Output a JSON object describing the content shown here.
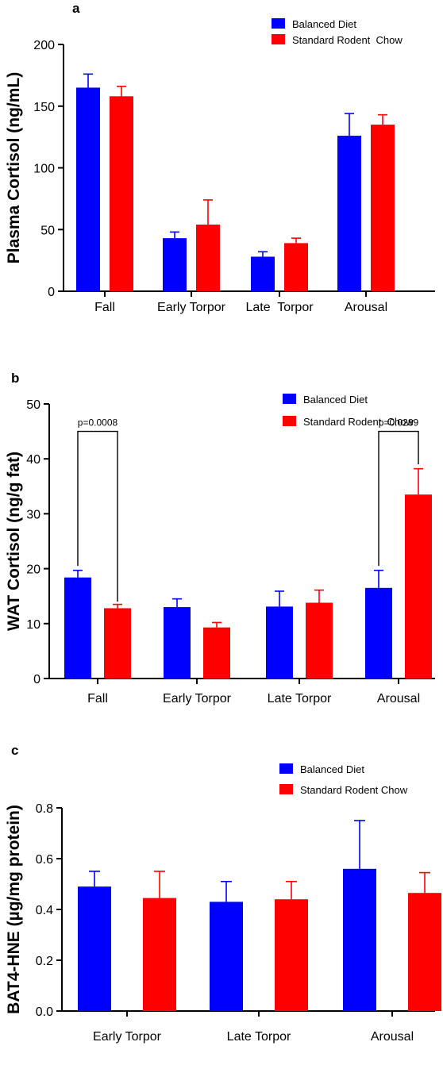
{
  "chart_data": [
    {
      "type": "bar",
      "panel_letter": "a",
      "title": "",
      "xlabel": "",
      "ylabel": "Plasma Cortisol (ng/mL)",
      "ylim": [
        0,
        200
      ],
      "yticks": [
        "0",
        "50",
        "100",
        "150",
        "200"
      ],
      "categories": [
        "Fall",
        "Early Torpor",
        "Late  Torpor",
        "Arousal"
      ],
      "series": [
        {
          "name": "Balanced Diet",
          "color": "#0000ff",
          "values": [
            165,
            43,
            28,
            126
          ],
          "errors": [
            11,
            5,
            4,
            18
          ]
        },
        {
          "name": "Standard Rodent  Chow",
          "color": "#ff0000",
          "values": [
            158,
            54,
            39,
            135
          ],
          "errors": [
            8,
            20,
            4,
            8
          ]
        }
      ],
      "annotations": [],
      "legend": "top-right",
      "grid": false
    },
    {
      "type": "bar",
      "panel_letter": "b",
      "title": "",
      "xlabel": "",
      "ylabel": "WAT Cortisol  (ng/g fat)",
      "ylim": [
        0,
        50
      ],
      "yticks": [
        "0",
        "10",
        "20",
        "30",
        "40",
        "50"
      ],
      "categories": [
        "Fall",
        "Early Torpor",
        "Late Torpor",
        "Arousal"
      ],
      "series": [
        {
          "name": "Balanced Diet",
          "color": "#0000ff",
          "values": [
            18.4,
            13.0,
            13.1,
            16.5
          ],
          "errors": [
            1.3,
            1.5,
            2.8,
            3.2
          ]
        },
        {
          "name": "Standard Rodent  Chow",
          "color": "#ff0000",
          "values": [
            12.8,
            9.3,
            13.8,
            33.5
          ],
          "errors": [
            0.7,
            0.9,
            2.3,
            4.7
          ]
        }
      ],
      "annotations": [
        {
          "text": "p=0.0008",
          "category": 0,
          "bracket_top": 45.0,
          "left_end": 20.5,
          "right_end": 14.0
        },
        {
          "text": "p=0.0289",
          "category": 3,
          "bracket_top": 45.0,
          "left_end": 20.5,
          "right_end": 39.0
        }
      ],
      "legend": "top-right",
      "grid": false
    },
    {
      "type": "bar",
      "panel_letter": "c",
      "title": "",
      "xlabel": "",
      "ylabel": "BAT4-HNE (µg/mg protein)",
      "ylim": [
        0,
        0.8
      ],
      "yticks": [
        "0.0",
        "0.2",
        "0.4",
        "0.6",
        "0.8"
      ],
      "categories": [
        "Early Torpor",
        "Late Torpor",
        "Arousal"
      ],
      "series": [
        {
          "name": "Balanced Diet",
          "color": "#0000ff",
          "values": [
            0.49,
            0.43,
            0.56
          ],
          "errors": [
            0.06,
            0.08,
            0.19
          ]
        },
        {
          "name": "Standard Rodent Chow",
          "color": "#ff0000",
          "values": [
            0.445,
            0.44,
            0.465
          ],
          "errors": [
            0.105,
            0.07,
            0.08
          ]
        }
      ],
      "annotations": [],
      "legend": "top-right",
      "grid": false
    }
  ]
}
